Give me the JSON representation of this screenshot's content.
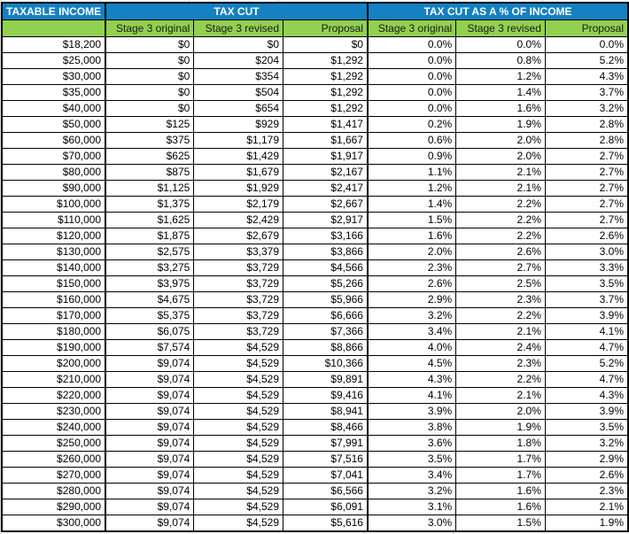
{
  "colors": {
    "header_blue": "#1580c2",
    "header_green": "#92d050",
    "gridline": "#d9d9d9"
  },
  "table": {
    "group_headers": [
      {
        "label": "TAXABLE INCOME",
        "span": 1
      },
      {
        "label": "TAX CUT",
        "span": 3
      },
      {
        "label": "TAX CUT AS A % OF INCOME",
        "span": 3
      }
    ],
    "sub_headers": [
      "",
      "Stage 3 original",
      "Stage 3 revised",
      "Proposal",
      "Stage 3 original",
      "Stage 3 revised",
      "Proposal"
    ],
    "rows": [
      [
        "$18,200",
        "$0",
        "$0",
        "$0",
        "0.0%",
        "0.0%",
        "0.0%"
      ],
      [
        "$25,000",
        "$0",
        "$204",
        "$1,292",
        "0.0%",
        "0.8%",
        "5.2%"
      ],
      [
        "$30,000",
        "$0",
        "$354",
        "$1,292",
        "0.0%",
        "1.2%",
        "4.3%"
      ],
      [
        "$35,000",
        "$0",
        "$504",
        "$1,292",
        "0.0%",
        "1.4%",
        "3.7%"
      ],
      [
        "$40,000",
        "$0",
        "$654",
        "$1,292",
        "0.0%",
        "1.6%",
        "3.2%"
      ],
      [
        "$50,000",
        "$125",
        "$929",
        "$1,417",
        "0.2%",
        "1.9%",
        "2.8%"
      ],
      [
        "$60,000",
        "$375",
        "$1,179",
        "$1,667",
        "0.6%",
        "2.0%",
        "2.8%"
      ],
      [
        "$70,000",
        "$625",
        "$1,429",
        "$1,917",
        "0.9%",
        "2.0%",
        "2.7%"
      ],
      [
        "$80,000",
        "$875",
        "$1,679",
        "$2,167",
        "1.1%",
        "2.1%",
        "2.7%"
      ],
      [
        "$90,000",
        "$1,125",
        "$1,929",
        "$2,417",
        "1.2%",
        "2.1%",
        "2.7%"
      ],
      [
        "$100,000",
        "$1,375",
        "$2,179",
        "$2,667",
        "1.4%",
        "2.2%",
        "2.7%"
      ],
      [
        "$110,000",
        "$1,625",
        "$2,429",
        "$2,917",
        "1.5%",
        "2.2%",
        "2.7%"
      ],
      [
        "$120,000",
        "$1,875",
        "$2,679",
        "$3,166",
        "1.6%",
        "2.2%",
        "2.6%"
      ],
      [
        "$130,000",
        "$2,575",
        "$3,379",
        "$3,866",
        "2.0%",
        "2.6%",
        "3.0%"
      ],
      [
        "$140,000",
        "$3,275",
        "$3,729",
        "$4,566",
        "2.3%",
        "2.7%",
        "3.3%"
      ],
      [
        "$150,000",
        "$3,975",
        "$3,729",
        "$5,266",
        "2.6%",
        "2.5%",
        "3.5%"
      ],
      [
        "$160,000",
        "$4,675",
        "$3,729",
        "$5,966",
        "2.9%",
        "2.3%",
        "3.7%"
      ],
      [
        "$170,000",
        "$5,375",
        "$3,729",
        "$6,666",
        "3.2%",
        "2.2%",
        "3.9%"
      ],
      [
        "$180,000",
        "$6,075",
        "$3,729",
        "$7,366",
        "3.4%",
        "2.1%",
        "4.1%"
      ],
      [
        "$190,000",
        "$7,574",
        "$4,529",
        "$8,866",
        "4.0%",
        "2.4%",
        "4.7%"
      ],
      [
        "$200,000",
        "$9,074",
        "$4,529",
        "$10,366",
        "4.5%",
        "2.3%",
        "5.2%"
      ],
      [
        "$210,000",
        "$9,074",
        "$4,529",
        "$9,891",
        "4.3%",
        "2.2%",
        "4.7%"
      ],
      [
        "$220,000",
        "$9,074",
        "$4,529",
        "$9,416",
        "4.1%",
        "2.1%",
        "4.3%"
      ],
      [
        "$230,000",
        "$9,074",
        "$4,529",
        "$8,941",
        "3.9%",
        "2.0%",
        "3.9%"
      ],
      [
        "$240,000",
        "$9,074",
        "$4,529",
        "$8,466",
        "3.8%",
        "1.9%",
        "3.5%"
      ],
      [
        "$250,000",
        "$9,074",
        "$4,529",
        "$7,991",
        "3.6%",
        "1.8%",
        "3.2%"
      ],
      [
        "$260,000",
        "$9,074",
        "$4,529",
        "$7,516",
        "3.5%",
        "1.7%",
        "2.9%"
      ],
      [
        "$270,000",
        "$9,074",
        "$4,529",
        "$7,041",
        "3.4%",
        "1.7%",
        "2.6%"
      ],
      [
        "$280,000",
        "$9,074",
        "$4,529",
        "$6,566",
        "3.2%",
        "1.6%",
        "2.3%"
      ],
      [
        "$290,000",
        "$9,074",
        "$4,529",
        "$6,091",
        "3.1%",
        "1.6%",
        "2.1%"
      ],
      [
        "$300,000",
        "$9,074",
        "$4,529",
        "$5,616",
        "3.0%",
        "1.5%",
        "1.9%"
      ]
    ]
  }
}
